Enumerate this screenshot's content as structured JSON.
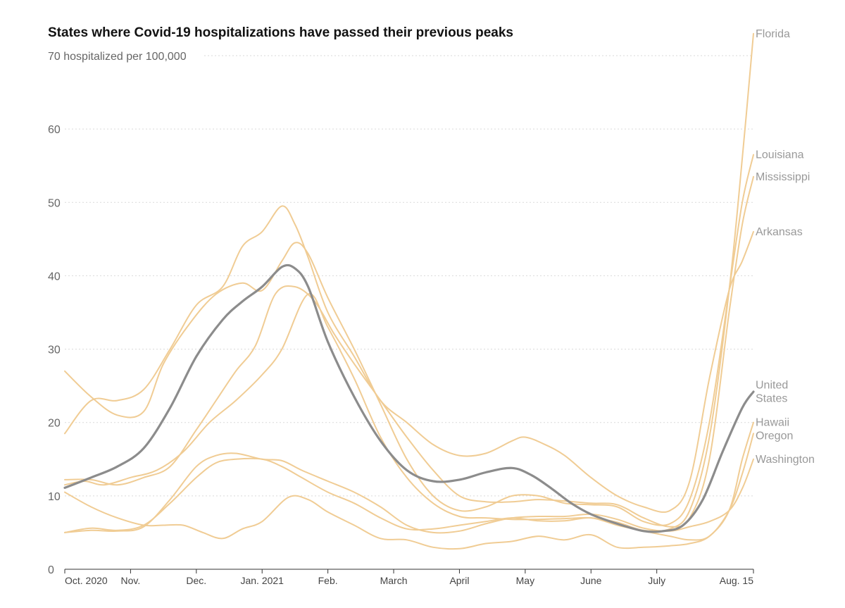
{
  "chart_data": {
    "type": "line",
    "title": "States where Covid-19 hospitalizations have passed their previous peaks",
    "ylabel": "hospitalized per 100,000",
    "ylim": [
      0,
      70
    ],
    "yticks": [
      0,
      10,
      20,
      30,
      40,
      50,
      60,
      70
    ],
    "ytick_labels": [
      "0",
      "10",
      "20",
      "30",
      "40",
      "50",
      "60",
      "70"
    ],
    "ytop_label": "70 hospitalized per 100,000",
    "x_unit": "months since Oct. 1, 2020",
    "xlim": [
      0,
      10.47
    ],
    "xticks": [
      {
        "x": 0,
        "label": "Oct. 2020"
      },
      {
        "x": 1,
        "label": "Nov."
      },
      {
        "x": 2,
        "label": "Dec."
      },
      {
        "x": 3,
        "label": "Jan. 2021"
      },
      {
        "x": 4,
        "label": "Feb."
      },
      {
        "x": 5,
        "label": "March"
      },
      {
        "x": 6,
        "label": "April"
      },
      {
        "x": 7,
        "label": "May"
      },
      {
        "x": 8,
        "label": "June"
      },
      {
        "x": 9,
        "label": "July"
      },
      {
        "x": 10.47,
        "label": "Aug. 15"
      }
    ],
    "grid": true,
    "highlight_color": "#8c8c8c",
    "state_color": "#f0cc94",
    "series": [
      {
        "name": "Florida",
        "label_lines": [
          "Florida"
        ],
        "highlight": false,
        "x": [
          0,
          0.3,
          0.6,
          1,
          1.4,
          1.8,
          2.2,
          2.6,
          3,
          3.3,
          3.7,
          4,
          4.4,
          4.8,
          5.2,
          5.6,
          6,
          6.4,
          6.8,
          7.2,
          7.6,
          8,
          8.4,
          8.8,
          9.2,
          9.5,
          9.8,
          10.1,
          10.3,
          10.47
        ],
        "values": [
          11.5,
          12,
          11.5,
          12.5,
          13.5,
          16,
          20,
          23,
          26.5,
          30,
          37.5,
          33,
          26,
          18,
          12.5,
          9,
          7.2,
          7,
          6.8,
          6.8,
          6.9,
          7,
          6.4,
          5.3,
          5.5,
          8,
          18,
          38,
          56,
          73
        ]
      },
      {
        "name": "Louisiana",
        "label_lines": [
          "Louisiana"
        ],
        "highlight": false,
        "x": [
          0,
          0.4,
          0.8,
          1.2,
          1.5,
          1.9,
          2.3,
          2.7,
          3,
          3.3,
          3.5,
          3.7,
          4,
          4.4,
          4.8,
          5.2,
          5.6,
          6,
          6.4,
          6.8,
          7.2,
          7.6,
          8,
          8.4,
          8.8,
          9.2,
          9.5,
          9.8,
          10.1,
          10.3,
          10.47
        ],
        "values": [
          27,
          23.5,
          21,
          21.5,
          28,
          33.5,
          37.5,
          39,
          38,
          42,
          44.5,
          43,
          37,
          30,
          22.5,
          15,
          10,
          8,
          8.5,
          10,
          10,
          9,
          8.8,
          8.5,
          6.5,
          6.2,
          9.5,
          20,
          38,
          50,
          56.5
        ]
      },
      {
        "name": "Mississippi",
        "label_lines": [
          "Mississippi"
        ],
        "highlight": false,
        "x": [
          0,
          0.4,
          0.8,
          1.2,
          1.6,
          2,
          2.3,
          2.6,
          2.9,
          3.2,
          3.5,
          3.8,
          4.1,
          4.4,
          4.8,
          5.2,
          5.6,
          6,
          6.4,
          6.8,
          7.2,
          7.6,
          8,
          8.4,
          8.8,
          9.2,
          9.5,
          9.8,
          10.1,
          10.3,
          10.47
        ],
        "values": [
          12.2,
          12.2,
          11.5,
          12.5,
          14,
          19,
          23,
          27,
          30.5,
          37.5,
          38.5,
          36.5,
          32,
          28,
          23,
          18,
          13.5,
          10,
          9.2,
          9.2,
          9.5,
          9.3,
          9,
          8.8,
          7,
          5.8,
          7,
          15,
          35,
          47,
          53.5
        ]
      },
      {
        "name": "Arkansas",
        "label_lines": [
          "Arkansas"
        ],
        "highlight": false,
        "x": [
          0,
          0.4,
          0.8,
          1.2,
          1.6,
          2,
          2.4,
          2.7,
          3,
          3.3,
          3.5,
          3.7,
          4,
          4.4,
          4.8,
          5.2,
          5.6,
          6,
          6.4,
          6.8,
          7,
          7.3,
          7.6,
          8,
          8.4,
          8.8,
          9.2,
          9.5,
          9.8,
          10.1,
          10.3,
          10.47
        ],
        "values": [
          18.5,
          23,
          23,
          24.5,
          30,
          36,
          38.5,
          44,
          46,
          49.5,
          47,
          42.5,
          35,
          29,
          23,
          20,
          17,
          15.5,
          15.8,
          17.5,
          18,
          17,
          15.5,
          12.5,
          10,
          8.5,
          8,
          12,
          26,
          38,
          42,
          46
        ]
      },
      {
        "name": "United States",
        "label_lines": [
          "United",
          "States"
        ],
        "highlight": true,
        "x": [
          0,
          0.4,
          0.8,
          1.2,
          1.6,
          2,
          2.4,
          2.7,
          3,
          3.3,
          3.5,
          3.7,
          4,
          4.4,
          4.8,
          5.2,
          5.6,
          6,
          6.4,
          6.8,
          7.1,
          7.4,
          7.7,
          8,
          8.4,
          8.8,
          9.1,
          9.4,
          9.7,
          10,
          10.3,
          10.47
        ],
        "values": [
          11.1,
          12.5,
          14,
          16.5,
          22,
          29,
          34,
          36.5,
          38.5,
          41.2,
          41,
          38.5,
          31,
          23.5,
          17.5,
          13.5,
          12,
          12.2,
          13.2,
          13.8,
          12.8,
          11,
          9,
          7.5,
          6.2,
          5.2,
          5.2,
          6,
          9.5,
          16,
          22,
          24.2
        ]
      },
      {
        "name": "Hawaii",
        "label_lines": [
          "Hawaii"
        ],
        "highlight": false,
        "x": [
          0,
          0.4,
          0.8,
          1.2,
          1.5,
          1.8,
          2.1,
          2.4,
          2.7,
          3,
          3.4,
          3.7,
          4,
          4.4,
          4.8,
          5.2,
          5.6,
          6,
          6.4,
          6.8,
          7.2,
          7.6,
          8,
          8.4,
          8.8,
          9.2,
          9.5,
          9.8,
          10.1,
          10.3,
          10.47
        ],
        "values": [
          10.5,
          8.5,
          7,
          6,
          6,
          6,
          5,
          4.2,
          5.5,
          6.5,
          9.8,
          9.5,
          7.8,
          6,
          4.2,
          4,
          3,
          2.8,
          3.5,
          3.8,
          4.5,
          4,
          4.7,
          3,
          3,
          3.2,
          3.5,
          4.5,
          8,
          15,
          20
        ]
      },
      {
        "name": "Oregon",
        "label_lines": [
          "Oregon"
        ],
        "highlight": false,
        "x": [
          0,
          0.4,
          0.8,
          1.2,
          1.6,
          2,
          2.3,
          2.6,
          3,
          3.3,
          3.6,
          4,
          4.4,
          4.8,
          5.2,
          5.6,
          6,
          6.4,
          6.8,
          7.2,
          7.6,
          8,
          8.4,
          8.8,
          9.2,
          9.5,
          9.8,
          10.1,
          10.3,
          10.47
        ],
        "values": [
          5,
          5.6,
          5.3,
          6,
          9,
          12.5,
          14.5,
          15,
          15,
          14,
          12.5,
          10.5,
          9,
          7,
          5.5,
          5.5,
          6,
          6.5,
          7,
          6.6,
          6.6,
          7,
          6,
          5.2,
          4.5,
          4,
          4.5,
          8,
          13,
          18.5
        ]
      },
      {
        "name": "Washington",
        "label_lines": [
          "Washington"
        ],
        "highlight": false,
        "x": [
          0,
          0.4,
          0.8,
          1.2,
          1.6,
          2,
          2.3,
          2.6,
          3,
          3.3,
          3.6,
          4,
          4.4,
          4.8,
          5.2,
          5.6,
          6,
          6.4,
          6.8,
          7.2,
          7.6,
          8,
          8.4,
          8.8,
          9.2,
          9.5,
          9.8,
          10.1,
          10.3,
          10.47
        ],
        "values": [
          5,
          5.3,
          5.2,
          5.8,
          9.5,
          14,
          15.5,
          15.8,
          15,
          14.8,
          13.5,
          12,
          10.5,
          8.5,
          6,
          5,
          5.2,
          6.2,
          7,
          7.2,
          7.2,
          7.5,
          6.8,
          5.6,
          5.2,
          5.8,
          6.5,
          8,
          11,
          15
        ]
      }
    ]
  }
}
